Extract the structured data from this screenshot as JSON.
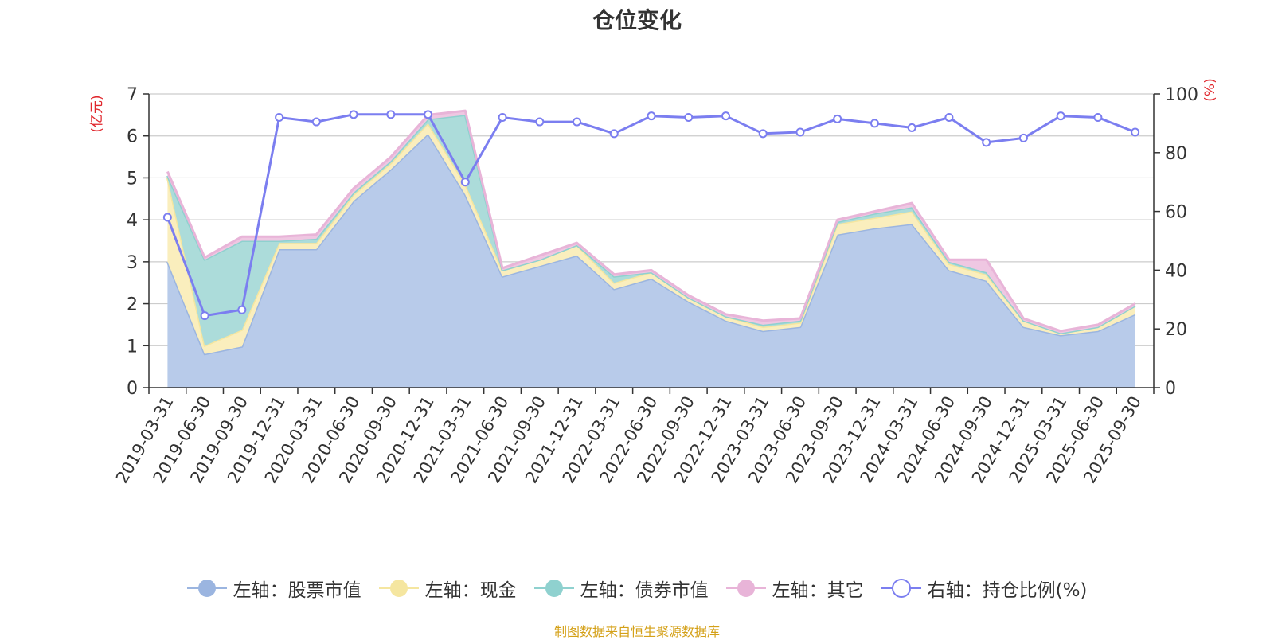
{
  "chart_data": {
    "type": "area",
    "title": "仓位变化",
    "y_left_unit": "(亿元)",
    "y_right_unit": "(%)",
    "y_left_range": [
      0,
      7
    ],
    "y_left_ticks": [
      "0",
      "1",
      "2",
      "3",
      "4",
      "5",
      "6",
      "7"
    ],
    "y_right_range": [
      0,
      100
    ],
    "y_right_ticks": [
      "0",
      "20",
      "40",
      "60",
      "80",
      "100"
    ],
    "grid": true,
    "stacked": true,
    "legend_position": "bottom",
    "categories": [
      "2019-03-31",
      "2019-06-30",
      "2019-09-30",
      "2019-12-31",
      "2020-03-31",
      "2020-06-30",
      "2020-09-30",
      "2020-12-31",
      "2021-03-31",
      "2021-06-30",
      "2021-09-30",
      "2021-12-31",
      "2022-03-31",
      "2022-06-30",
      "2022-09-30",
      "2022-12-31",
      "2023-03-31",
      "2023-06-30",
      "2023-09-30",
      "2023-12-31",
      "2024-03-31",
      "2024-06-30",
      "2024-09-30",
      "2024-12-31",
      "2025-03-31",
      "2025-06-30",
      "2025-09-30"
    ],
    "series": [
      {
        "name": "左轴：股票市值",
        "axis": "left",
        "kind": "area",
        "color": "#9bb5e0",
        "fill": "#b8cbea",
        "values": [
          3.0,
          0.8,
          0.98,
          3.3,
          3.3,
          4.45,
          5.2,
          6.05,
          4.6,
          2.65,
          2.9,
          3.15,
          2.35,
          2.6,
          2.05,
          1.6,
          1.35,
          1.45,
          3.65,
          3.8,
          3.9,
          2.8,
          2.55,
          1.45,
          1.25,
          1.35,
          1.75
        ]
      },
      {
        "name": "左轴：现金",
        "axis": "left",
        "kind": "area",
        "color": "#f5e6a0",
        "fill": "#faeebd",
        "values": [
          2.0,
          0.2,
          0.4,
          0.15,
          0.15,
          0.15,
          0.15,
          0.25,
          0.25,
          0.15,
          0.15,
          0.25,
          0.15,
          0.15,
          0.1,
          0.1,
          0.1,
          0.1,
          0.25,
          0.25,
          0.3,
          0.15,
          0.15,
          0.15,
          0.05,
          0.1,
          0.2
        ]
      },
      {
        "name": "左轴：债券市值",
        "axis": "left",
        "kind": "area",
        "color": "#8fd1cf",
        "fill": "#acdcda",
        "values": [
          0.05,
          2.05,
          2.12,
          0.05,
          0.1,
          0.05,
          0.05,
          0.1,
          1.65,
          0.0,
          0.0,
          0.0,
          0.15,
          0.0,
          0.0,
          0.0,
          0.05,
          0.05,
          0.05,
          0.1,
          0.1,
          0.05,
          0.05,
          0.0,
          0.0,
          0.0,
          0.0
        ]
      },
      {
        "name": "左轴：其它",
        "axis": "left",
        "kind": "area",
        "color": "#e8b4d8",
        "fill": "#efc7e2",
        "values": [
          0.1,
          0.05,
          0.1,
          0.1,
          0.1,
          0.1,
          0.1,
          0.1,
          0.1,
          0.05,
          0.1,
          0.05,
          0.05,
          0.05,
          0.05,
          0.05,
          0.1,
          0.05,
          0.05,
          0.05,
          0.1,
          0.05,
          0.3,
          0.05,
          0.05,
          0.05,
          0.05
        ]
      },
      {
        "name": "右轴：持仓比例(%)",
        "axis": "right",
        "kind": "line",
        "color": "#7b7ef0",
        "values": [
          58,
          24.5,
          26.5,
          92,
          90.5,
          93,
          93,
          93,
          70,
          92,
          90.5,
          90.5,
          86.5,
          92.5,
          92,
          92.5,
          86.5,
          87,
          91.5,
          90,
          88.5,
          92,
          83.5,
          85,
          92.5,
          92,
          87
        ]
      }
    ]
  },
  "source_note": "制图数据来自恒生聚源数据库"
}
